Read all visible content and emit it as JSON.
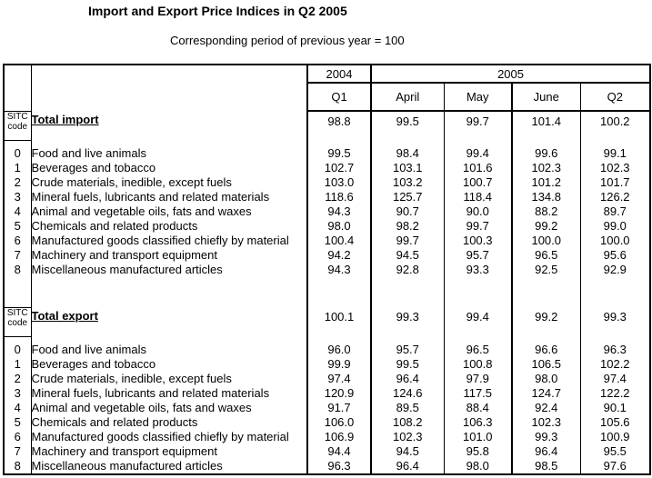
{
  "title": "Import and Export Price Indices in Q2 2005",
  "subtitle": "Corresponding period of previous year = 100",
  "colors": {
    "text": "#000000",
    "background": "#ffffff",
    "grid": "#000000"
  },
  "table": {
    "year_groups": [
      {
        "label": "2004",
        "span": 1
      },
      {
        "label": "2005",
        "span": 4
      }
    ],
    "period_columns": [
      "Q1",
      "April",
      "May",
      "June",
      "Q2"
    ],
    "sitc_header": [
      "SITC",
      "code"
    ],
    "sections": [
      {
        "name": "import",
        "total_label": "Total import",
        "total_values": [
          "98.8",
          "99.5",
          "99.7",
          "101.4",
          "100.2"
        ],
        "rows": [
          {
            "code": "0",
            "label": "Food and live animals",
            "values": [
              "99.5",
              "98.4",
              "99.4",
              "99.6",
              "99.1"
            ]
          },
          {
            "code": "1",
            "label": "Beverages and tobacco",
            "values": [
              "102.7",
              "103.1",
              "101.6",
              "102.3",
              "102.3"
            ]
          },
          {
            "code": "2",
            "label": "Crude materials, inedible, except fuels",
            "values": [
              "103.0",
              "103.2",
              "100.7",
              "101.2",
              "101.7"
            ]
          },
          {
            "code": "3",
            "label": "Mineral fuels, lubricants and related materials",
            "values": [
              "118.6",
              "125.7",
              "118.4",
              "134.8",
              "126.2"
            ]
          },
          {
            "code": "4",
            "label": "Animal and vegetable oils, fats and waxes",
            "values": [
              "94.3",
              "90.7",
              "90.0",
              "88.2",
              "89.7"
            ]
          },
          {
            "code": "5",
            "label": "Chemicals and related products",
            "values": [
              "98.0",
              "98.2",
              "99.7",
              "99.2",
              "99.0"
            ]
          },
          {
            "code": "6",
            "label": "Manufactured goods classified chiefly by material",
            "values": [
              "100.4",
              "99.7",
              "100.3",
              "100.0",
              "100.0"
            ]
          },
          {
            "code": "7",
            "label": "Machinery and transport equipment",
            "values": [
              "94.2",
              "94.5",
              "95.7",
              "96.5",
              "95.6"
            ]
          },
          {
            "code": "8",
            "label": "Miscellaneous manufactured articles",
            "values": [
              "94.3",
              "92.8",
              "93.3",
              "92.5",
              "92.9"
            ]
          }
        ]
      },
      {
        "name": "export",
        "total_label": "Total export",
        "total_values": [
          "100.1",
          "99.3",
          "99.4",
          "99.2",
          "99.3"
        ],
        "rows": [
          {
            "code": "0",
            "label": "Food and live animals",
            "values": [
              "96.0",
              "95.7",
              "96.5",
              "96.6",
              "96.3"
            ]
          },
          {
            "code": "1",
            "label": "Beverages and tobacco",
            "values": [
              "99.9",
              "99.5",
              "100.8",
              "106.5",
              "102.2"
            ]
          },
          {
            "code": "2",
            "label": "Crude materials, inedible, except fuels",
            "values": [
              "97.4",
              "96.4",
              "97.9",
              "98.0",
              "97.4"
            ]
          },
          {
            "code": "3",
            "label": "Mineral fuels, lubricants and related materials",
            "values": [
              "120.9",
              "124.6",
              "117.5",
              "124.7",
              "122.2"
            ]
          },
          {
            "code": "4",
            "label": "Animal and vegetable oils, fats and waxes",
            "values": [
              "91.7",
              "89.5",
              "88.4",
              "92.4",
              "90.1"
            ]
          },
          {
            "code": "5",
            "label": "Chemicals and related products",
            "values": [
              "106.0",
              "108.2",
              "106.3",
              "102.3",
              "105.6"
            ]
          },
          {
            "code": "6",
            "label": "Manufactured goods classified chiefly by material",
            "values": [
              "106.9",
              "102.3",
              "101.0",
              "99.3",
              "100.9"
            ]
          },
          {
            "code": "7",
            "label": "Machinery and transport equipment",
            "values": [
              "94.4",
              "94.5",
              "95.8",
              "96.4",
              "95.5"
            ]
          },
          {
            "code": "8",
            "label": "Miscellaneous manufactured articles",
            "values": [
              "96.3",
              "96.4",
              "98.0",
              "98.5",
              "97.6"
            ]
          }
        ]
      }
    ]
  }
}
